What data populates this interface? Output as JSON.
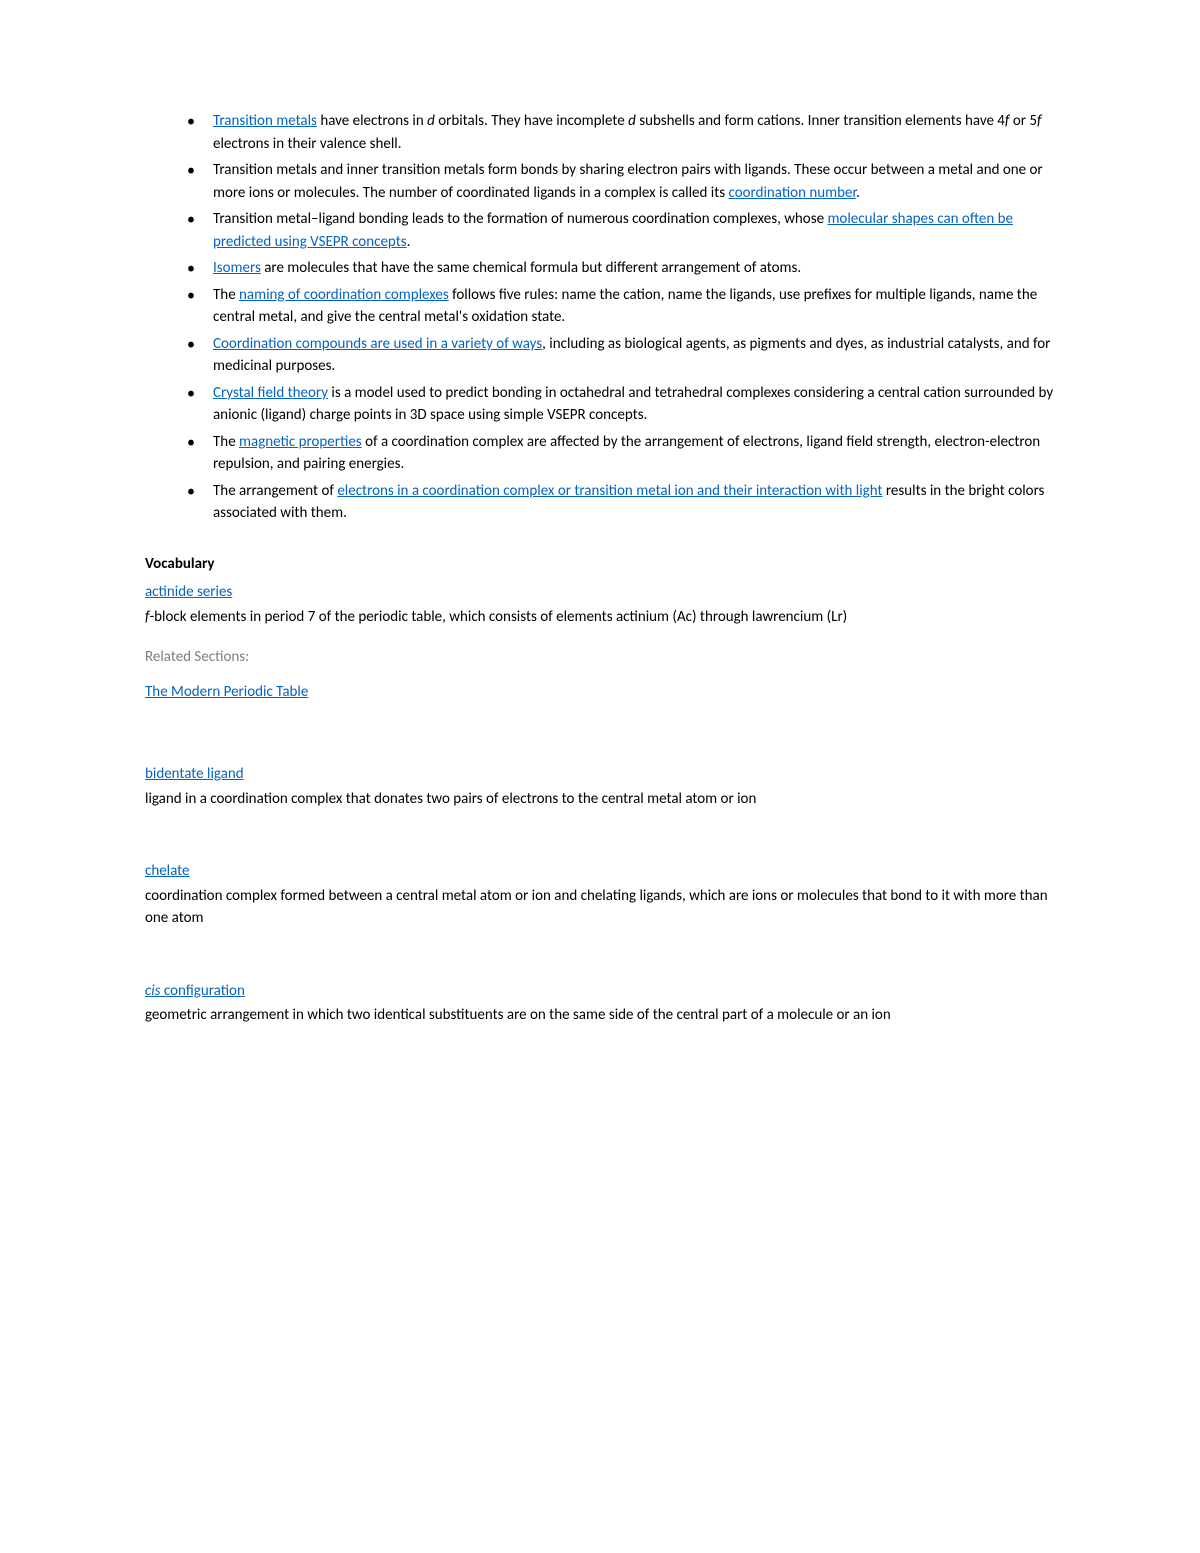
{
  "colors": {
    "link": "#0563c1",
    "text": "#000000",
    "muted": "#7f7f7f",
    "background": "#ffffff"
  },
  "bullets": [
    {
      "parts": [
        {
          "t": "link",
          "v": "Transition metals"
        },
        {
          "t": "text",
          "v": " have electrons in "
        },
        {
          "t": "italic",
          "v": "d"
        },
        {
          "t": "text",
          "v": " orbitals. They have incomplete "
        },
        {
          "t": "italic",
          "v": "d"
        },
        {
          "t": "text",
          "v": " subshells and form cations. Inner transition elements have 4"
        },
        {
          "t": "italic",
          "v": "f"
        },
        {
          "t": "text",
          "v": " or 5"
        },
        {
          "t": "italic",
          "v": "f"
        },
        {
          "t": "text",
          "v": " electrons in their valence shell."
        }
      ]
    },
    {
      "parts": [
        {
          "t": "text",
          "v": "Transition metals and inner transition metals form bonds by sharing electron pairs with ligands. These occur between a metal and one or more ions or molecules. The number of coordinated ligands in a complex is called its "
        },
        {
          "t": "link",
          "v": "coordination number"
        },
        {
          "t": "text",
          "v": "."
        }
      ]
    },
    {
      "parts": [
        {
          "t": "text",
          "v": "Transition metal–ligand bonding leads to the formation of numerous coordination complexes, whose "
        },
        {
          "t": "link",
          "v": "molecular shapes can often be predicted using VSEPR concepts"
        },
        {
          "t": "text",
          "v": "."
        }
      ]
    },
    {
      "parts": [
        {
          "t": "link",
          "v": "Isomers"
        },
        {
          "t": "text",
          "v": " are molecules that have the same chemical formula but different arrangement of atoms."
        }
      ]
    },
    {
      "parts": [
        {
          "t": "text",
          "v": "The "
        },
        {
          "t": "link",
          "v": "naming of coordination complexes"
        },
        {
          "t": "text",
          "v": " follows five rules: name the cation, name the ligands, use prefixes for multiple ligands, name the central metal, and give the central metal's oxidation state."
        }
      ]
    },
    {
      "parts": [
        {
          "t": "link",
          "v": "Coordination compounds are used in a variety of ways"
        },
        {
          "t": "text",
          "v": ", including as biological agents, as pigments and dyes, as industrial catalysts, and for medicinal purposes."
        }
      ]
    },
    {
      "parts": [
        {
          "t": "link",
          "v": "Crystal field theory"
        },
        {
          "t": "text",
          "v": " is a model used to predict bonding in octahedral and tetrahedral complexes considering a central cation surrounded by anionic (ligand) charge points in 3D space using simple VSEPR concepts."
        }
      ]
    },
    {
      "parts": [
        {
          "t": "text",
          "v": "The "
        },
        {
          "t": "link",
          "v": "magnetic properties"
        },
        {
          "t": "text",
          "v": " of a coordination complex are affected by the arrangement of electrons, ligand field strength, electron-electron repulsion, and pairing energies."
        }
      ]
    },
    {
      "parts": [
        {
          "t": "text",
          "v": "The arrangement of "
        },
        {
          "t": "link",
          "v": "electrons in a coordination complex or transition metal ion and their interaction with light"
        },
        {
          "t": "text",
          "v": " results in the bright colors associated with them."
        }
      ]
    }
  ],
  "vocab_heading": "Vocabulary",
  "related_sections_label": "Related Sections:",
  "vocab": [
    {
      "term_parts": [
        {
          "t": "link",
          "v": "actinide series"
        }
      ],
      "def_parts": [
        {
          "t": "italic",
          "v": "f"
        },
        {
          "t": "text",
          "v": "-block elements in period 7 of the periodic table, which consists of elements actinium (Ac) through lawrencium (Lr)"
        }
      ],
      "related": "The Modern Periodic Table"
    },
    {
      "term_parts": [
        {
          "t": "link",
          "v": "bidentate ligand"
        }
      ],
      "def_parts": [
        {
          "t": "text",
          "v": "ligand in a coordination complex that donates two pairs of electrons to the central metal atom or ion"
        }
      ]
    },
    {
      "term_parts": [
        {
          "t": "link",
          "v": "chelate"
        }
      ],
      "def_parts": [
        {
          "t": "text",
          "v": "coordination complex formed between a central metal atom or ion and chelating ligands, which are ions or molecules that bond to it with more than one atom"
        }
      ]
    },
    {
      "term_parts": [
        {
          "t": "linkitalic",
          "v": "cis"
        },
        {
          "t": "link",
          "v": " configuration"
        }
      ],
      "def_parts": [
        {
          "t": "text",
          "v": "geometric arrangement in which two identical substituents are on the same side of the central part of a molecule or an ion"
        }
      ]
    }
  ]
}
